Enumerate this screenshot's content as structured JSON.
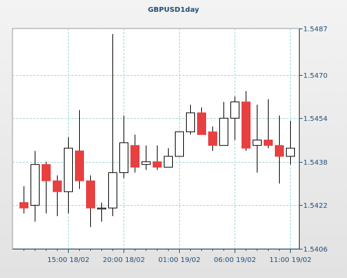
{
  "chart_data": {
    "type": "candlestick",
    "title": "GBPUSD1day",
    "xlabel": "",
    "ylabel": "",
    "ylim": [
      1.5406,
      1.5487
    ],
    "yticks": [
      {
        "value": 1.5406,
        "label": "1.5406"
      },
      {
        "value": 1.5422,
        "label": "1.5422"
      },
      {
        "value": 1.5438,
        "label": "1.5438"
      },
      {
        "value": 1.5454,
        "label": "1.5454"
      },
      {
        "value": 1.547,
        "label": "1.5470"
      },
      {
        "value": 1.5487,
        "label": "1.5487"
      }
    ],
    "xticks": [
      {
        "index": 4,
        "label": "15:00 18/02"
      },
      {
        "index": 9,
        "label": "20:00 18/02"
      },
      {
        "index": 14,
        "label": "01:00 19/02"
      },
      {
        "index": 19,
        "label": "06:00 19/02"
      },
      {
        "index": 24,
        "label": "11:00 19/02"
      }
    ],
    "grid": true,
    "candles": [
      {
        "open": 1.5423,
        "high": 1.5429,
        "low": 1.5419,
        "close": 1.5421
      },
      {
        "open": 1.5422,
        "high": 1.5442,
        "low": 1.5416,
        "close": 1.5437
      },
      {
        "open": 1.5437,
        "high": 1.5438,
        "low": 1.5419,
        "close": 1.5431
      },
      {
        "open": 1.5431,
        "high": 1.5433,
        "low": 1.5418,
        "close": 1.5427
      },
      {
        "open": 1.5427,
        "high": 1.5447,
        "low": 1.5419,
        "close": 1.5443
      },
      {
        "open": 1.5442,
        "high": 1.5457,
        "low": 1.5428,
        "close": 1.5431
      },
      {
        "open": 1.5431,
        "high": 1.5433,
        "low": 1.5414,
        "close": 1.5421
      },
      {
        "open": 1.5421,
        "high": 1.5423,
        "low": 1.5416,
        "close": 1.5421
      },
      {
        "open": 1.5421,
        "high": 1.5485,
        "low": 1.5418,
        "close": 1.5434
      },
      {
        "open": 1.5434,
        "high": 1.5455,
        "low": 1.5432,
        "close": 1.5445
      },
      {
        "open": 1.5444,
        "high": 1.5448,
        "low": 1.5434,
        "close": 1.5436
      },
      {
        "open": 1.5437,
        "high": 1.5444,
        "low": 1.5435,
        "close": 1.5438
      },
      {
        "open": 1.5438,
        "high": 1.5444,
        "low": 1.5435,
        "close": 1.5436
      },
      {
        "open": 1.5436,
        "high": 1.5443,
        "low": 1.5436,
        "close": 1.544
      },
      {
        "open": 1.544,
        "high": 1.5449,
        "low": 1.544,
        "close": 1.5449
      },
      {
        "open": 1.5449,
        "high": 1.5459,
        "low": 1.5448,
        "close": 1.5456
      },
      {
        "open": 1.5456,
        "high": 1.5458,
        "low": 1.5448,
        "close": 1.5448
      },
      {
        "open": 1.5449,
        "high": 1.5451,
        "low": 1.5442,
        "close": 1.5444
      },
      {
        "open": 1.5444,
        "high": 1.546,
        "low": 1.5444,
        "close": 1.5454
      },
      {
        "open": 1.5454,
        "high": 1.5462,
        "low": 1.5446,
        "close": 1.546
      },
      {
        "open": 1.546,
        "high": 1.5464,
        "low": 1.5442,
        "close": 1.5443
      },
      {
        "open": 1.5444,
        "high": 1.5459,
        "low": 1.5434,
        "close": 1.5446
      },
      {
        "open": 1.5446,
        "high": 1.5461,
        "low": 1.5443,
        "close": 1.5444
      },
      {
        "open": 1.5444,
        "high": 1.5455,
        "low": 1.543,
        "close": 1.544
      },
      {
        "open": 1.544,
        "high": 1.5453,
        "low": 1.5437,
        "close": 1.5443
      }
    ],
    "colors": {
      "bull_fill": "#ffffff",
      "bear_fill": "#e84040",
      "candle_outline": "#000000",
      "grid": "#9ed6d6",
      "axis": "#1f4e79",
      "plot_bg": "#ffffff"
    }
  }
}
